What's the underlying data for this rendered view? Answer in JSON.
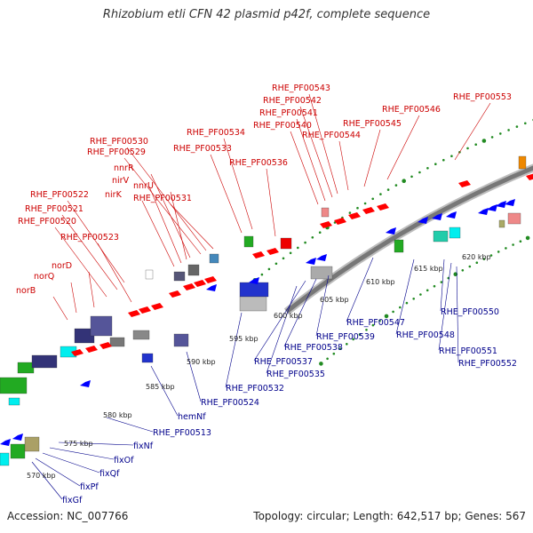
{
  "title": "Rhizobium etli CFN 42 plasmid p42f, complete sequence",
  "accession_text": "Accession: NC_007766",
  "topology_text": "Topology: circular; Length: 642,517 bp; Genes: 567",
  "colors": {
    "forward": "#ff0000",
    "reverse": "#0000ff",
    "backbone": "#777777",
    "tick_dots": "#228b22",
    "forward_label": "#cc0000",
    "reverse_label": "#00008b"
  },
  "kbp_ticks": [
    "570 kbp",
    "575 kbp",
    "580 kbp",
    "585 kbp",
    "590 kbp",
    "595 kbp",
    "600 kbp",
    "605 kbp",
    "610 kbp",
    "615 kbp",
    "620 kbp"
  ],
  "forward_labels": [
    "norB",
    "norQ",
    "norD",
    "RHE_PF00520",
    "RHE_PF00521",
    "RHE_PF00522",
    "RHE_PF00523",
    "nirK",
    "nirV",
    "nnrU",
    "nnrR",
    "RHE_PF00529",
    "RHE_PF00530",
    "RHE_PF00531",
    "RHE_PF00533",
    "RHE_PF00534",
    "RHE_PF00536",
    "RHE_PF00540",
    "RHE_PF00541",
    "RHE_PF00542",
    "RHE_PF00543",
    "RHE_PF00544",
    "RHE_PF00545",
    "RHE_PF00546",
    "RHE_PF00553"
  ],
  "reverse_labels": [
    "fixGf",
    "fixPf",
    "fixQf",
    "fixOf",
    "fixNf",
    "RHE_PF00513",
    "hemNf",
    "RHE_PF00524",
    "RHE_PF00532",
    "RHE_PF00535",
    "RHE_PF00537",
    "RHE_PF00538",
    "RHE_PF00539",
    "RHE_PF00547",
    "RHE_PF00548",
    "RHE_PF00550",
    "RHE_PF00551",
    "RHE_PF00552"
  ]
}
